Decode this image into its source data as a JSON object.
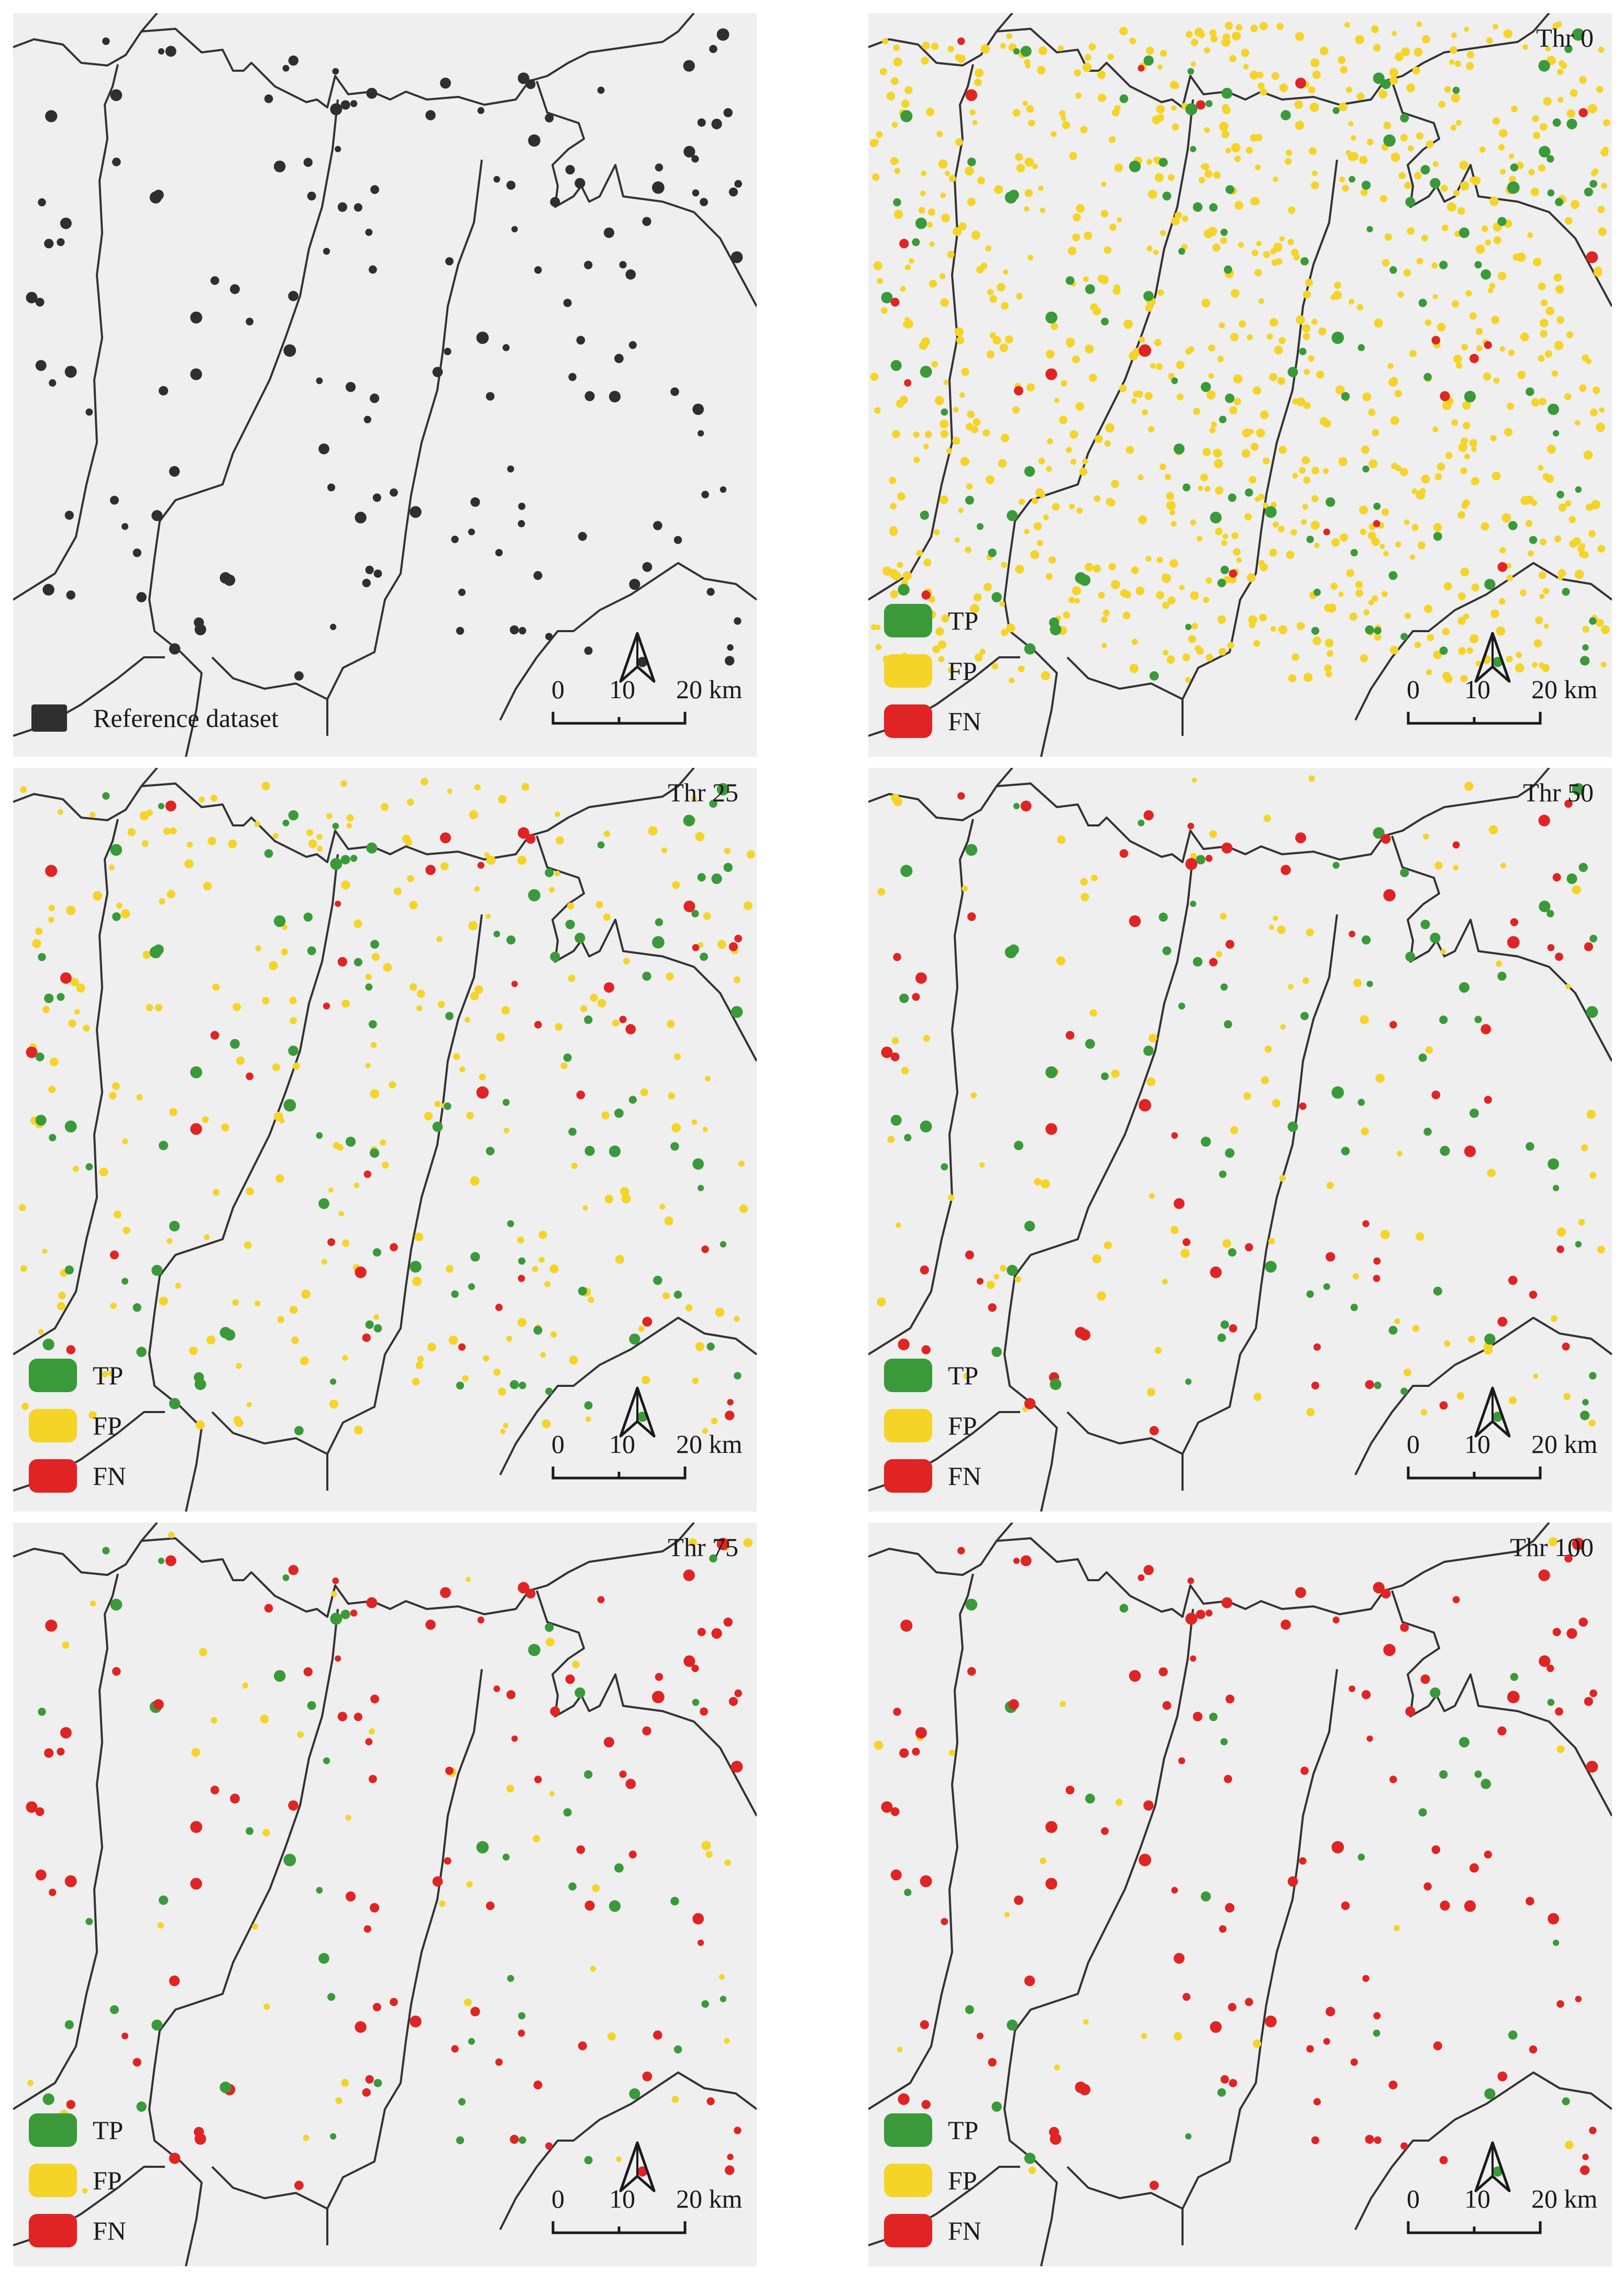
{
  "colors": {
    "background": "#efefef",
    "boundary": "#333333",
    "reference": "#2f2f2f",
    "TP": "#3a9a3a",
    "FP": "#f5d428",
    "FN": "#e02424"
  },
  "icons": {
    "north_arrow": "north-arrow-icon"
  },
  "scale_bar": {
    "tick0": "0",
    "tick1": "10",
    "tick2": "20 km"
  },
  "legend": {
    "tp": "TP",
    "fp": "FP",
    "fn": "FN",
    "reference": "Reference dataset"
  },
  "panels": [
    {
      "id": "p0",
      "threshold": "",
      "kind": "reference",
      "fp_density": 0,
      "fn_fraction": 0
    },
    {
      "id": "p1",
      "threshold": "Thr 0",
      "kind": "classified",
      "fp_density": 1.0,
      "fn_fraction": 0.1
    },
    {
      "id": "p2",
      "threshold": "Thr 25",
      "kind": "classified",
      "fp_density": 0.3,
      "fn_fraction": 0.25
    },
    {
      "id": "p3",
      "threshold": "Thr 50",
      "kind": "classified",
      "fp_density": 0.12,
      "fn_fraction": 0.45
    },
    {
      "id": "p4",
      "threshold": "Thr 75",
      "kind": "classified",
      "fp_density": 0.05,
      "fn_fraction": 0.65
    },
    {
      "id": "p5",
      "threshold": "Thr 100",
      "kind": "classified",
      "fp_density": 0.02,
      "fn_fraction": 0.85
    }
  ]
}
